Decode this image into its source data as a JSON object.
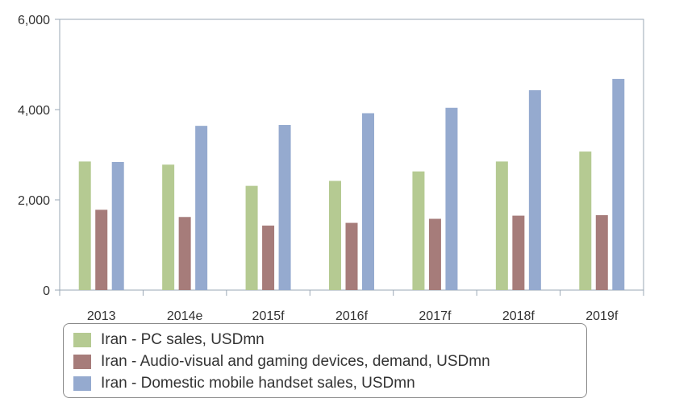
{
  "chart_data": {
    "type": "bar",
    "categories": [
      "2013",
      "2014e",
      "2015f",
      "2016f",
      "2017f",
      "2018f",
      "2019f"
    ],
    "series": [
      {
        "name": "Iran - PC sales, USDmn",
        "color": "#b5ca92",
        "values": [
          2850,
          2780,
          2310,
          2420,
          2630,
          2850,
          3070
        ]
      },
      {
        "name": "Iran - Audio-visual and gaming devices, demand, USDmn",
        "color": "#a67c7a",
        "values": [
          1780,
          1620,
          1430,
          1490,
          1580,
          1650,
          1660
        ]
      },
      {
        "name": "Iran - Domestic mobile handset sales, USDmn",
        "color": "#95aacf",
        "values": [
          2840,
          3640,
          3660,
          3920,
          4040,
          4430,
          4680
        ]
      }
    ],
    "ylim": [
      0,
      6000
    ],
    "yticks": [
      0,
      2000,
      4000,
      6000
    ],
    "ytick_labels": [
      "0",
      "2,000",
      "4,000",
      "6,000"
    ],
    "grid": false,
    "legend_position": "bottom"
  }
}
